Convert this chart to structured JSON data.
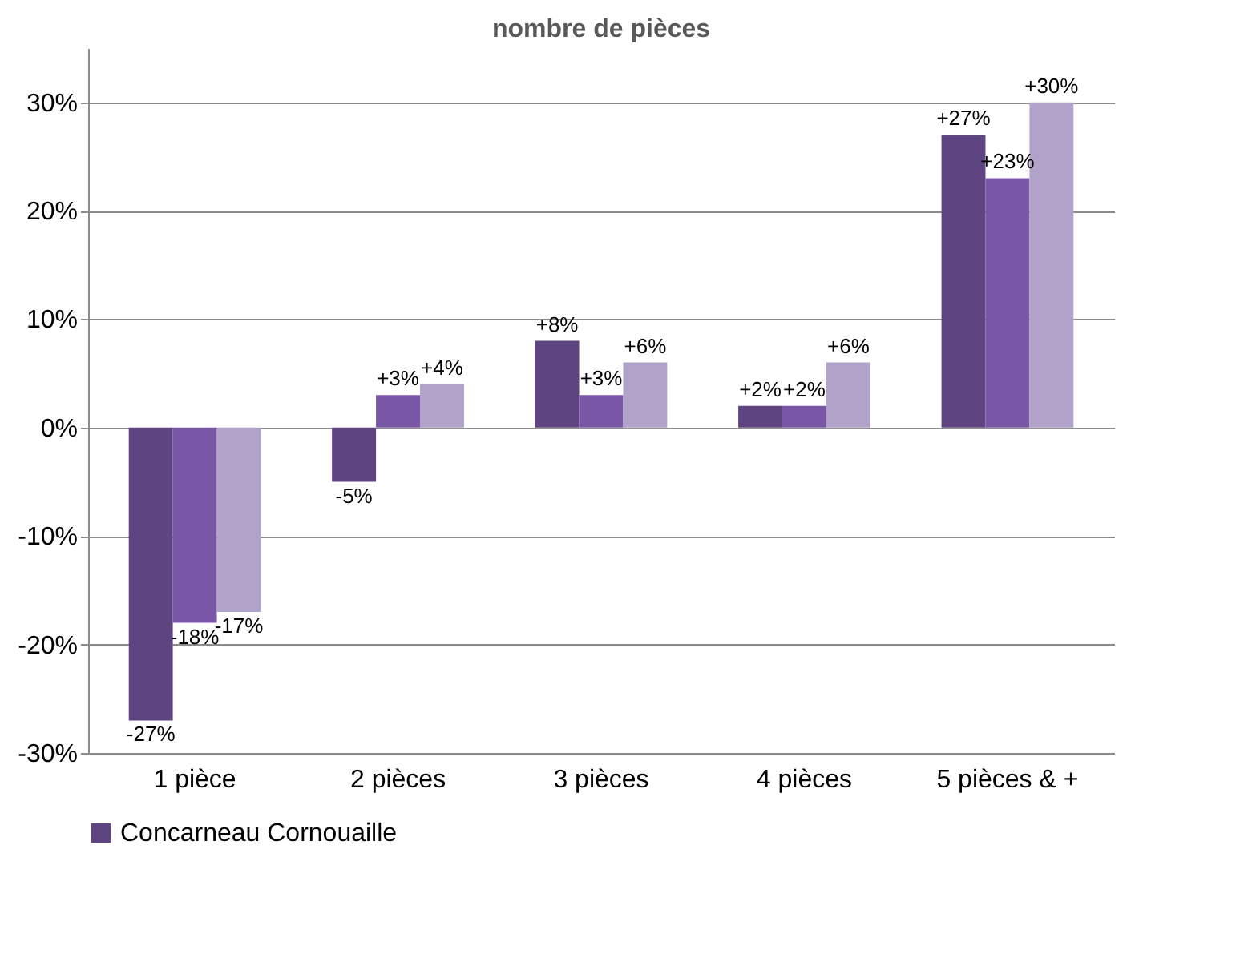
{
  "chart_data": {
    "type": "bar",
    "title": "nombre de pièces",
    "categories": [
      "1 pièce",
      "2 pièces",
      "3 pièces",
      "4 pièces",
      "5 pièces & +"
    ],
    "series": [
      {
        "name": "Concarneau Cornouaille",
        "color": "#5e4480",
        "values": [
          -27,
          -5,
          8,
          2,
          27
        ],
        "value_labels": [
          "-27%",
          "-5%",
          "+8%",
          "+2%",
          "+27%"
        ]
      },
      {
        "color": "#7a56a6",
        "values": [
          -18,
          3,
          3,
          2,
          23
        ],
        "value_labels": [
          "-18%",
          "+3%",
          "+3%",
          "+2%",
          "+23%"
        ]
      },
      {
        "color": "#b0a2c8",
        "values": [
          -17,
          4,
          6,
          6,
          30
        ],
        "value_labels": [
          "-17%",
          "+4%",
          "+6%",
          "+6%",
          "+30%"
        ]
      }
    ],
    "ylim": [
      -30,
      35
    ],
    "yticks": [
      {
        "value": -30,
        "label": "-30%"
      },
      {
        "value": -20,
        "label": "-20%"
      },
      {
        "value": -10,
        "label": "-10%"
      },
      {
        "value": 0,
        "label": "0%"
      },
      {
        "value": 10,
        "label": "10%"
      },
      {
        "value": 20,
        "label": "20%"
      },
      {
        "value": 30,
        "label": "30%"
      }
    ],
    "grid": "y",
    "legend": "bottom"
  }
}
